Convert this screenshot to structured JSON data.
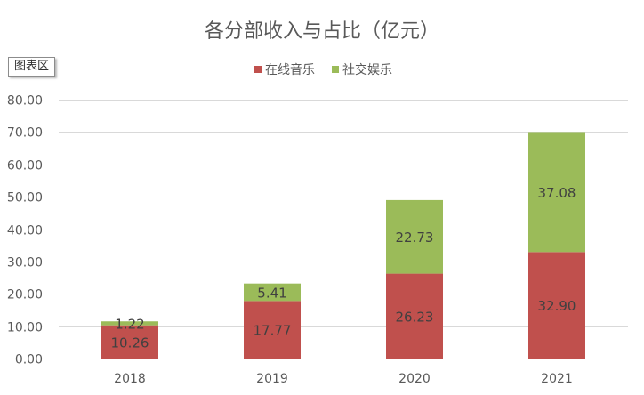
{
  "chart_area_tag": "图表区",
  "chart_data": {
    "type": "bar",
    "stacked": true,
    "title": "各分部收入与占比（亿元）",
    "categories": [
      "2018",
      "2019",
      "2020",
      "2021"
    ],
    "series": [
      {
        "name": "在线音乐",
        "color": "#C0504D",
        "values": [
          10.26,
          17.77,
          26.23,
          32.9
        ]
      },
      {
        "name": "社交娱乐",
        "color": "#9BBB59",
        "values": [
          1.22,
          5.41,
          22.73,
          37.08
        ]
      }
    ],
    "value_labels": [
      [
        "10.26",
        "17.77",
        "26.23",
        "32.90"
      ],
      [
        "1.22",
        "5.41",
        "22.73",
        "37.08"
      ]
    ],
    "ylim": [
      0,
      80
    ],
    "yticks": [
      0,
      10,
      20,
      30,
      40,
      50,
      60,
      70,
      80
    ],
    "ytick_labels": [
      "0.00",
      "10.00",
      "20.00",
      "30.00",
      "40.00",
      "50.00",
      "60.00",
      "70.00",
      "80.00"
    ],
    "xlabel": "",
    "ylabel": "",
    "grid": true,
    "legend_position": "top-center"
  }
}
